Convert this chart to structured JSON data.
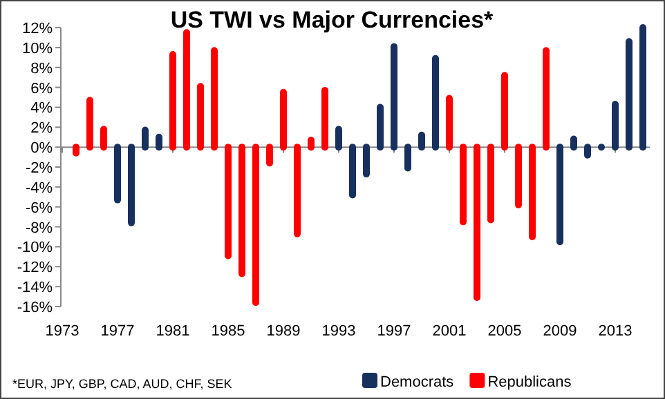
{
  "chart_data": {
    "type": "bar",
    "title": "US TWI vs Major Currencies*",
    "categories": [
      "1973",
      null,
      null,
      null,
      "1977",
      null,
      null,
      null,
      "1981",
      null,
      null,
      null,
      "1985",
      null,
      null,
      null,
      "1989",
      null,
      null,
      null,
      "1993",
      null,
      null,
      null,
      "1997",
      null,
      null,
      null,
      "2001",
      null,
      null,
      null,
      "2005",
      null,
      null,
      null,
      "2009",
      null,
      null,
      null,
      "2013",
      null,
      null
    ],
    "series": [
      {
        "name": "Democrats",
        "color": "#17305e",
        "values": [
          null,
          null,
          null,
          null,
          -5.3,
          -7.6,
          1.7,
          1.0,
          null,
          null,
          null,
          null,
          null,
          null,
          null,
          null,
          null,
          null,
          null,
          null,
          1.8,
          -4.8,
          -2.7,
          4.0,
          10.1,
          -2.1,
          1.2,
          8.9,
          null,
          null,
          null,
          null,
          null,
          null,
          null,
          null,
          -9.5,
          0.8,
          -0.8,
          0,
          4.3,
          10.6,
          12
        ]
      },
      {
        "name": "Republicans",
        "color": "#ff0000",
        "values": [
          null,
          -0.6,
          4.7,
          1.8,
          null,
          null,
          null,
          null,
          9.3,
          11.5,
          6.1,
          9.7,
          -10.9,
          -12.7,
          -15.6,
          -1.6,
          5.5,
          -8.7,
          0.7,
          5.7,
          null,
          null,
          null,
          null,
          null,
          null,
          null,
          null,
          4.9,
          -7.5,
          -15.1,
          -7.3,
          7.2,
          -5.8,
          -9.0,
          9.7,
          null,
          null,
          null,
          null,
          null,
          null,
          null
        ]
      }
    ],
    "ylim": [
      -16,
      12
    ],
    "yticks": [
      {
        "value": -16,
        "label": "-16%"
      },
      {
        "value": -14,
        "label": "-14%"
      },
      {
        "value": -12,
        "label": "-12%"
      },
      {
        "value": -10,
        "label": "-10%"
      },
      {
        "value": -8,
        "label": "-8%"
      },
      {
        "value": -6,
        "label": "-6%"
      },
      {
        "value": -4,
        "label": "-4%"
      },
      {
        "value": -2,
        "label": "-2%"
      },
      {
        "value": 0,
        "label": "0%"
      },
      {
        "value": 2,
        "label": "2%"
      },
      {
        "value": 4,
        "label": "4%"
      },
      {
        "value": 6,
        "label": "6%"
      },
      {
        "value": 8,
        "label": "8%"
      },
      {
        "value": 10,
        "label": "10%"
      },
      {
        "value": 12,
        "label": "12%"
      }
    ],
    "legend": "bottom right",
    "annotations": [
      "*EUR, JPY, GBP, CAD, AUD, CHF, SEK"
    ]
  }
}
